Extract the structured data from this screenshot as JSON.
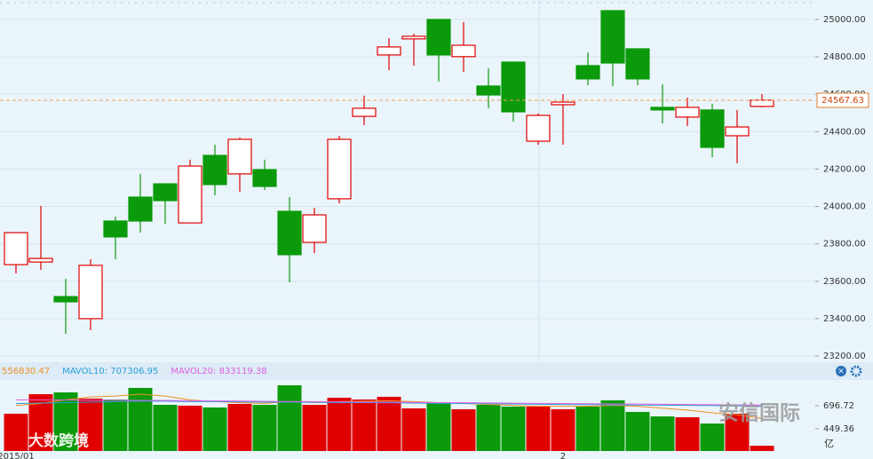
{
  "chart_data": [
    {
      "type": "candlestick",
      "categories": [
        "2015/01",
        null,
        null,
        null,
        null,
        null,
        null,
        null,
        null,
        null,
        null,
        null,
        null,
        null,
        null,
        null,
        null,
        null,
        null,
        null,
        null,
        null,
        "2",
        null,
        null,
        null,
        null,
        null,
        null,
        null,
        null
      ],
      "open": [
        23689,
        23703,
        23518,
        23400,
        23922,
        24050,
        24121,
        23912,
        24273,
        24174,
        24197,
        23974,
        23808,
        24041,
        24482,
        24810,
        24896,
        25000,
        24801,
        24644,
        24772,
        24349,
        24544,
        24753,
        25047,
        24843,
        24530,
        24478,
        24516,
        24378,
        24535
      ],
      "close": [
        23860,
        23722,
        23490,
        23685,
        23837,
        23922,
        24031,
        24216,
        24117,
        24359,
        24107,
        23742,
        23955,
        24359,
        24525,
        24853,
        24910,
        24810,
        24862,
        24596,
        24506,
        24487,
        24558,
        24682,
        24767,
        24682,
        24516,
        24530,
        24316,
        24425,
        24568
      ],
      "high": [
        23860,
        24003,
        23613,
        23718,
        23946,
        24174,
        24121,
        24250,
        24330,
        24368,
        24250,
        24050,
        23993,
        24378,
        24592,
        24900,
        24924,
        25000,
        24986,
        24739,
        24772,
        24497,
        24601,
        24824,
        25047,
        24843,
        24653,
        24582,
        24549,
        24516,
        24601
      ],
      "low": [
        23642,
        23661,
        23319,
        23338,
        23718,
        23860,
        23908,
        23912,
        24060,
        24079,
        24088,
        23594,
        23751,
        24017,
        24435,
        24729,
        24753,
        24668,
        24720,
        24525,
        24454,
        24330,
        24330,
        24649,
        24644,
        24649,
        24444,
        24430,
        24264,
        24231,
        24530
      ],
      "up_color": "#e00000",
      "down_color": "#0a9a0a",
      "ylim": [
        23167,
        25104
      ],
      "yticks": [
        {
          "value": 23200,
          "label": "23200.00"
        },
        {
          "value": 23400,
          "label": "23400.00"
        },
        {
          "value": 23600,
          "label": "23600.00"
        },
        {
          "value": 23800,
          "label": "23800.00"
        },
        {
          "value": 24000,
          "label": "24000.00"
        },
        {
          "value": 24200,
          "label": "24200.00"
        },
        {
          "value": 24400,
          "label": "24400.00"
        },
        {
          "value": 24600,
          "label": "24600.00"
        },
        {
          "value": 24800,
          "label": "24800.00"
        },
        {
          "value": 25000,
          "label": "25000.00"
        }
      ],
      "current_price": 24567.63,
      "grid": true
    },
    {
      "type": "bar",
      "values": [
        611,
        820,
        839,
        773,
        763,
        887,
        706,
        697,
        678,
        716,
        706,
        915,
        706,
        782,
        763,
        792,
        668,
        725,
        659,
        706,
        687,
        687,
        659,
        687,
        754,
        630,
        582,
        573,
        506,
        611,
        268
      ],
      "series": [
        {
          "name": "556830.47",
          "color": "#f09020",
          "values": [
            700,
            720,
            760,
            790,
            800,
            820,
            800,
            760,
            740,
            730,
            720,
            740,
            730,
            740,
            745,
            750,
            740,
            730,
            720,
            710,
            700,
            690,
            690,
            690,
            700,
            690,
            670,
            650,
            620,
            600,
            560
          ]
        },
        {
          "name": "MAVOL10: 707306.95",
          "color": "#2a9fd8",
          "values": [
            720,
            725,
            730,
            735,
            740,
            745,
            745,
            740,
            740,
            738,
            735,
            735,
            733,
            730,
            730,
            728,
            725,
            722,
            720,
            718,
            715,
            712,
            710,
            708,
            706,
            704,
            702,
            700,
            698,
            695,
            690
          ]
        },
        {
          "name": "MAVOL20: 833119.38",
          "color": "#e060e0",
          "values": [
            760,
            760,
            758,
            756,
            755,
            754,
            752,
            750,
            748,
            746,
            744,
            742,
            740,
            738,
            736,
            734,
            732,
            730,
            728,
            726,
            724,
            722,
            720,
            718,
            716,
            714,
            712,
            710,
            708,
            706,
            704
          ]
        }
      ],
      "ylim": [
        212,
        953
      ],
      "yticks": [
        449.36,
        696.72
      ],
      "unit": "亿"
    }
  ],
  "watermarks": [
    "大数跨境",
    "安信国际"
  ]
}
